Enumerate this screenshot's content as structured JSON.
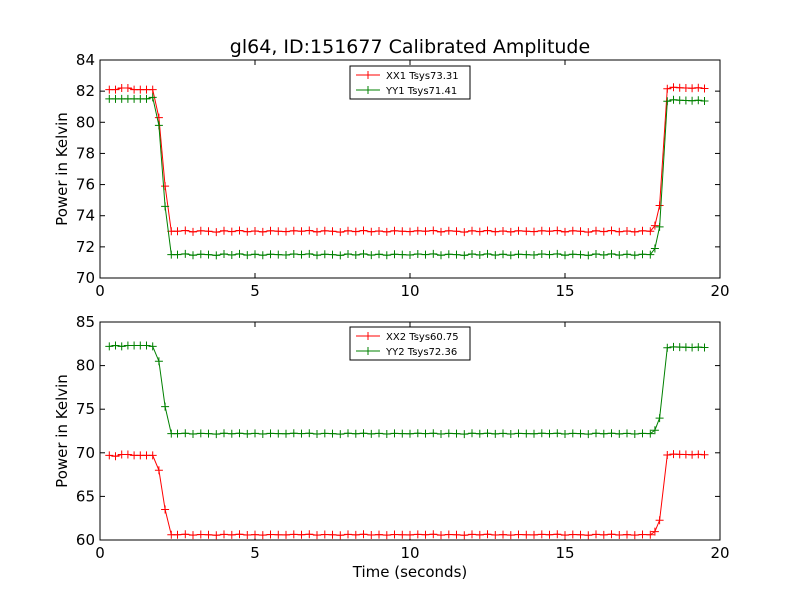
{
  "title": "gl64, ID:151677 Calibrated Amplitude",
  "xlabel": "Time (seconds)",
  "colors": {
    "xx": "#ff0000",
    "yy": "#008000"
  },
  "chart_data": [
    {
      "type": "line",
      "ylabel": "Power in Kelvin",
      "xlim": [
        0,
        20
      ],
      "ylim": [
        70,
        84
      ],
      "xticks": [
        0,
        5,
        10,
        15,
        20
      ],
      "yticks": [
        70,
        72,
        74,
        76,
        78,
        80,
        82,
        84
      ],
      "legend_position": "top-center",
      "series": [
        {
          "name": "XX1 Tsys73.31",
          "color": "#ff0000",
          "levels": {
            "high_start": 82.2,
            "low": 73.0,
            "high_end": 82.2
          },
          "x": [
            0.3,
            0.5,
            0.7,
            0.9,
            1.1,
            1.3,
            1.5,
            1.7,
            1.9,
            2.1,
            2.3
          ],
          "y": [
            82.1,
            82.1,
            82.2,
            82.2,
            82.1,
            82.1,
            82.1,
            82.1,
            80.3,
            75.9,
            73.0
          ]
        },
        {
          "name": "YY1 Tsys71.41",
          "color": "#008000",
          "levels": {
            "high_start": 81.5,
            "low": 71.5,
            "high_end": 81.4
          },
          "x": [
            0.3,
            0.5,
            0.7,
            0.9,
            1.1,
            1.3,
            1.5,
            1.7,
            1.9,
            2.1,
            2.3
          ],
          "y": [
            81.5,
            81.5,
            81.5,
            81.5,
            81.5,
            81.5,
            81.5,
            81.6,
            79.8,
            74.6,
            71.5
          ]
        }
      ]
    },
    {
      "type": "line",
      "ylabel": "Power in Kelvin",
      "xlabel": "Time (seconds)",
      "xlim": [
        0,
        20
      ],
      "ylim": [
        60,
        85
      ],
      "xticks": [
        0,
        5,
        10,
        15,
        20
      ],
      "yticks": [
        60,
        65,
        70,
        75,
        80,
        85
      ],
      "legend_position": "top-center",
      "series": [
        {
          "name": "XX2 Tsys60.75",
          "color": "#ff0000",
          "levels": {
            "high_start": 69.8,
            "low": 60.6,
            "high_end": 69.8
          },
          "x": [
            0.3,
            0.5,
            0.7,
            0.9,
            1.1,
            1.3,
            1.5,
            1.7,
            1.9,
            2.1,
            2.3
          ],
          "y": [
            69.7,
            69.6,
            69.8,
            69.8,
            69.7,
            69.7,
            69.7,
            69.7,
            68.0,
            63.5,
            60.6
          ]
        },
        {
          "name": "YY2 Tsys72.36",
          "color": "#008000",
          "levels": {
            "high_start": 82.2,
            "low": 72.2,
            "high_end": 82.1
          },
          "x": [
            0.3,
            0.5,
            0.7,
            0.9,
            1.1,
            1.3,
            1.5,
            1.7,
            1.9,
            2.1,
            2.3
          ],
          "y": [
            82.2,
            82.3,
            82.2,
            82.3,
            82.3,
            82.3,
            82.3,
            82.2,
            80.5,
            75.3,
            72.2
          ]
        }
      ]
    }
  ]
}
